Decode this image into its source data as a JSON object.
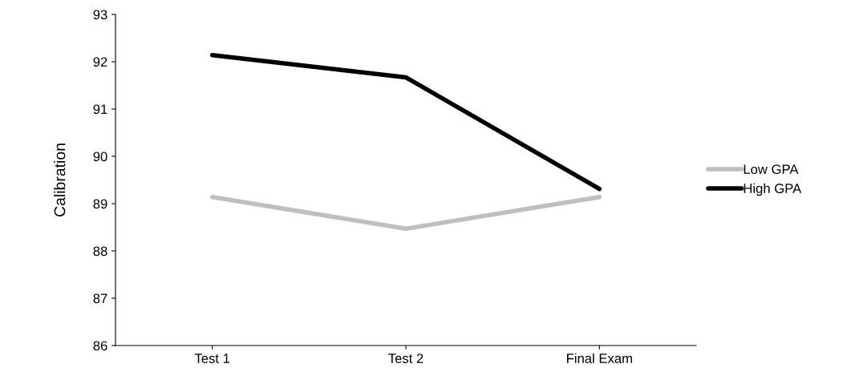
{
  "chart_data": {
    "type": "line",
    "ylabel": "Calibration",
    "categories": [
      "Test 1",
      "Test 2",
      "Final Exam"
    ],
    "series": [
      {
        "name": "Low GPA",
        "color": "#bfbfbf",
        "values": [
          89.14,
          88.47,
          89.14
        ]
      },
      {
        "name": "High GPA",
        "color": "#000000",
        "values": [
          92.14,
          91.67,
          89.31
        ]
      }
    ],
    "ylim": [
      86,
      93
    ],
    "yticks": [
      86,
      87,
      88,
      89,
      90,
      91,
      92,
      93
    ],
    "grid": false,
    "legend": "right",
    "marker": "none",
    "line_style": "solid"
  }
}
